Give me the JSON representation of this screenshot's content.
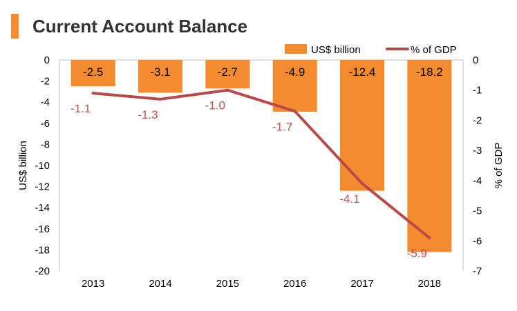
{
  "title": "Current Account Balance",
  "colors": {
    "accent": "#F58B2F",
    "bar": "#F58B2F",
    "line": "#B94A48",
    "axis_text": "#000000",
    "line_label": "#C0504D"
  },
  "chart_data": {
    "type": "bar",
    "categories": [
      "2013",
      "2014",
      "2015",
      "2016",
      "2017",
      "2018"
    ],
    "series": [
      {
        "name": "US$ billion",
        "type": "bar",
        "axis": "left",
        "values": [
          -2.5,
          -3.1,
          -2.7,
          -4.9,
          -12.4,
          -18.2
        ],
        "labels": [
          "-2.5",
          "-3.1",
          "-2.7",
          "-4.9",
          "-12.4",
          "-18.2"
        ]
      },
      {
        "name": "% of GDP",
        "type": "line",
        "axis": "right",
        "values": [
          -1.1,
          -1.3,
          -1.0,
          -1.7,
          -4.1,
          -5.9
        ],
        "labels": [
          "-1.1",
          "-1.3",
          "-1.0",
          "-1.7",
          "-4.1",
          "-5.9"
        ]
      }
    ],
    "ylabel": "US$ billion",
    "ylim": [
      -20,
      0
    ],
    "yticks": [
      "0",
      "-2",
      "-4",
      "-6",
      "-8",
      "-10",
      "-12",
      "-14",
      "-16",
      "-18",
      "-20"
    ],
    "y2label": "% of GDP",
    "y2lim": [
      -7,
      0
    ],
    "y2ticks": [
      "0",
      "-1",
      "-2",
      "-3",
      "-4",
      "-5",
      "-6",
      "-7"
    ],
    "legend": "top-right",
    "grid": false
  }
}
